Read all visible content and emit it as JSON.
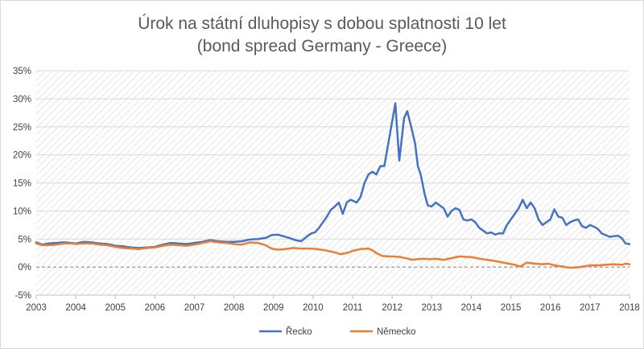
{
  "chart_data": {
    "type": "line",
    "title": "Úrok na státní dluhopisy s dobou splatnosti 10 let",
    "subtitle": "(bond spread Germany - Greece)",
    "xlabel": "",
    "ylabel": "",
    "xlim": [
      2003,
      2018
    ],
    "ylim": [
      -5,
      35
    ],
    "x_ticks": [
      "2003",
      "2004",
      "2005",
      "2006",
      "2007",
      "2008",
      "2009",
      "2010",
      "2011",
      "2012",
      "2013",
      "2014",
      "2015",
      "2016",
      "2017",
      "2018"
    ],
    "y_ticks": [
      "-5%",
      "0%",
      "5%",
      "10%",
      "15%",
      "20%",
      "25%",
      "30%",
      "35%"
    ],
    "grid": true,
    "background_pattern": "diagonal-hatch",
    "zero_line": "dashed",
    "legend_position": "bottom",
    "series": [
      {
        "name": "Řecko",
        "color": "#4472c4",
        "points": [
          [
            2003.0,
            4.4
          ],
          [
            2003.15,
            4.0
          ],
          [
            2003.3,
            4.2
          ],
          [
            2003.5,
            4.3
          ],
          [
            2003.7,
            4.4
          ],
          [
            2003.9,
            4.3
          ],
          [
            2004.0,
            4.2
          ],
          [
            2004.2,
            4.5
          ],
          [
            2004.4,
            4.4
          ],
          [
            2004.6,
            4.2
          ],
          [
            2004.8,
            4.1
          ],
          [
            2005.0,
            3.8
          ],
          [
            2005.2,
            3.7
          ],
          [
            2005.4,
            3.5
          ],
          [
            2005.6,
            3.4
          ],
          [
            2005.8,
            3.5
          ],
          [
            2006.0,
            3.6
          ],
          [
            2006.2,
            4.0
          ],
          [
            2006.4,
            4.3
          ],
          [
            2006.6,
            4.2
          ],
          [
            2006.8,
            4.1
          ],
          [
            2007.0,
            4.3
          ],
          [
            2007.2,
            4.5
          ],
          [
            2007.4,
            4.8
          ],
          [
            2007.6,
            4.6
          ],
          [
            2007.8,
            4.5
          ],
          [
            2008.0,
            4.5
          ],
          [
            2008.2,
            4.6
          ],
          [
            2008.4,
            4.9
          ],
          [
            2008.6,
            5.0
          ],
          [
            2008.8,
            5.2
          ],
          [
            2008.95,
            5.7
          ],
          [
            2009.1,
            5.8
          ],
          [
            2009.25,
            5.5
          ],
          [
            2009.4,
            5.2
          ],
          [
            2009.55,
            4.8
          ],
          [
            2009.7,
            4.6
          ],
          [
            2009.85,
            5.5
          ],
          [
            2009.95,
            6.0
          ],
          [
            2010.05,
            6.2
          ],
          [
            2010.15,
            7.0
          ],
          [
            2010.25,
            8.0
          ],
          [
            2010.35,
            9.0
          ],
          [
            2010.45,
            10.2
          ],
          [
            2010.55,
            10.8
          ],
          [
            2010.65,
            11.5
          ],
          [
            2010.75,
            9.5
          ],
          [
            2010.85,
            11.5
          ],
          [
            2010.95,
            12.0
          ],
          [
            2011.1,
            11.5
          ],
          [
            2011.2,
            12.5
          ],
          [
            2011.3,
            15.0
          ],
          [
            2011.4,
            16.5
          ],
          [
            2011.5,
            17.0
          ],
          [
            2011.6,
            16.5
          ],
          [
            2011.7,
            18.0
          ],
          [
            2011.8,
            18.0
          ],
          [
            2011.9,
            22.0
          ],
          [
            2012.0,
            26.0
          ],
          [
            2012.08,
            29.2
          ],
          [
            2012.18,
            19.0
          ],
          [
            2012.3,
            26.5
          ],
          [
            2012.38,
            27.8
          ],
          [
            2012.48,
            25.0
          ],
          [
            2012.58,
            22.0
          ],
          [
            2012.65,
            18.0
          ],
          [
            2012.72,
            16.5
          ],
          [
            2012.82,
            13.0
          ],
          [
            2012.9,
            11.0
          ],
          [
            2013.0,
            10.8
          ],
          [
            2013.1,
            11.5
          ],
          [
            2013.2,
            11.0
          ],
          [
            2013.3,
            10.5
          ],
          [
            2013.4,
            9.0
          ],
          [
            2013.5,
            10.0
          ],
          [
            2013.6,
            10.5
          ],
          [
            2013.7,
            10.2
          ],
          [
            2013.8,
            8.5
          ],
          [
            2013.9,
            8.3
          ],
          [
            2014.0,
            8.5
          ],
          [
            2014.1,
            8.0
          ],
          [
            2014.2,
            7.0
          ],
          [
            2014.3,
            6.5
          ],
          [
            2014.4,
            6.0
          ],
          [
            2014.5,
            6.2
          ],
          [
            2014.6,
            5.8
          ],
          [
            2014.7,
            6.0
          ],
          [
            2014.8,
            6.0
          ],
          [
            2014.9,
            7.5
          ],
          [
            2015.0,
            8.5
          ],
          [
            2015.1,
            9.5
          ],
          [
            2015.2,
            10.5
          ],
          [
            2015.3,
            12.0
          ],
          [
            2015.4,
            10.5
          ],
          [
            2015.5,
            11.5
          ],
          [
            2015.6,
            10.5
          ],
          [
            2015.7,
            8.5
          ],
          [
            2015.8,
            7.5
          ],
          [
            2015.9,
            8.0
          ],
          [
            2016.0,
            8.5
          ],
          [
            2016.1,
            10.3
          ],
          [
            2016.2,
            9.0
          ],
          [
            2016.3,
            8.8
          ],
          [
            2016.4,
            7.5
          ],
          [
            2016.5,
            8.0
          ],
          [
            2016.6,
            8.3
          ],
          [
            2016.7,
            8.5
          ],
          [
            2016.8,
            7.3
          ],
          [
            2016.9,
            7.0
          ],
          [
            2017.0,
            7.5
          ],
          [
            2017.1,
            7.2
          ],
          [
            2017.2,
            6.8
          ],
          [
            2017.3,
            6.0
          ],
          [
            2017.4,
            5.7
          ],
          [
            2017.5,
            5.4
          ],
          [
            2017.6,
            5.5
          ],
          [
            2017.7,
            5.6
          ],
          [
            2017.8,
            5.2
          ],
          [
            2017.9,
            4.2
          ],
          [
            2018.0,
            4.1
          ]
        ]
      },
      {
        "name": "Německo",
        "color": "#ed7d31",
        "points": [
          [
            2003.0,
            4.2
          ],
          [
            2003.15,
            3.9
          ],
          [
            2003.3,
            3.9
          ],
          [
            2003.5,
            4.0
          ],
          [
            2003.7,
            4.2
          ],
          [
            2003.9,
            4.2
          ],
          [
            2004.0,
            4.1
          ],
          [
            2004.2,
            4.2
          ],
          [
            2004.4,
            4.2
          ],
          [
            2004.6,
            4.0
          ],
          [
            2004.8,
            3.9
          ],
          [
            2005.0,
            3.6
          ],
          [
            2005.2,
            3.4
          ],
          [
            2005.4,
            3.3
          ],
          [
            2005.6,
            3.2
          ],
          [
            2005.8,
            3.4
          ],
          [
            2006.0,
            3.5
          ],
          [
            2006.2,
            3.8
          ],
          [
            2006.4,
            4.0
          ],
          [
            2006.6,
            3.9
          ],
          [
            2006.8,
            3.8
          ],
          [
            2007.0,
            4.0
          ],
          [
            2007.2,
            4.3
          ],
          [
            2007.4,
            4.6
          ],
          [
            2007.6,
            4.4
          ],
          [
            2007.8,
            4.3
          ],
          [
            2008.0,
            4.1
          ],
          [
            2008.2,
            4.0
          ],
          [
            2008.4,
            4.4
          ],
          [
            2008.6,
            4.3
          ],
          [
            2008.8,
            3.9
          ],
          [
            2008.95,
            3.3
          ],
          [
            2009.1,
            3.1
          ],
          [
            2009.3,
            3.2
          ],
          [
            2009.5,
            3.4
          ],
          [
            2009.7,
            3.3
          ],
          [
            2009.9,
            3.3
          ],
          [
            2010.1,
            3.2
          ],
          [
            2010.3,
            3.0
          ],
          [
            2010.5,
            2.7
          ],
          [
            2010.7,
            2.3
          ],
          [
            2010.9,
            2.6
          ],
          [
            2011.0,
            2.9
          ],
          [
            2011.2,
            3.2
          ],
          [
            2011.4,
            3.3
          ],
          [
            2011.5,
            3.0
          ],
          [
            2011.6,
            2.5
          ],
          [
            2011.75,
            2.0
          ],
          [
            2011.9,
            1.9
          ],
          [
            2012.0,
            1.9
          ],
          [
            2012.2,
            1.8
          ],
          [
            2012.4,
            1.5
          ],
          [
            2012.5,
            1.3
          ],
          [
            2012.6,
            1.4
          ],
          [
            2012.8,
            1.5
          ],
          [
            2012.95,
            1.4
          ],
          [
            2013.1,
            1.5
          ],
          [
            2013.3,
            1.3
          ],
          [
            2013.5,
            1.6
          ],
          [
            2013.7,
            1.9
          ],
          [
            2013.9,
            1.8
          ],
          [
            2014.0,
            1.8
          ],
          [
            2014.2,
            1.5
          ],
          [
            2014.4,
            1.3
          ],
          [
            2014.6,
            1.1
          ],
          [
            2014.8,
            0.8
          ],
          [
            2014.95,
            0.6
          ],
          [
            2015.1,
            0.4
          ],
          [
            2015.25,
            0.1
          ],
          [
            2015.4,
            0.8
          ],
          [
            2015.6,
            0.6
          ],
          [
            2015.8,
            0.5
          ],
          [
            2015.95,
            0.6
          ],
          [
            2016.1,
            0.3
          ],
          [
            2016.3,
            0.1
          ],
          [
            2016.45,
            -0.1
          ],
          [
            2016.6,
            -0.1
          ],
          [
            2016.75,
            0.0
          ],
          [
            2016.9,
            0.2
          ],
          [
            2017.0,
            0.3
          ],
          [
            2017.2,
            0.3
          ],
          [
            2017.4,
            0.4
          ],
          [
            2017.6,
            0.5
          ],
          [
            2017.8,
            0.4
          ],
          [
            2017.9,
            0.6
          ],
          [
            2018.0,
            0.5
          ]
        ]
      }
    ]
  }
}
